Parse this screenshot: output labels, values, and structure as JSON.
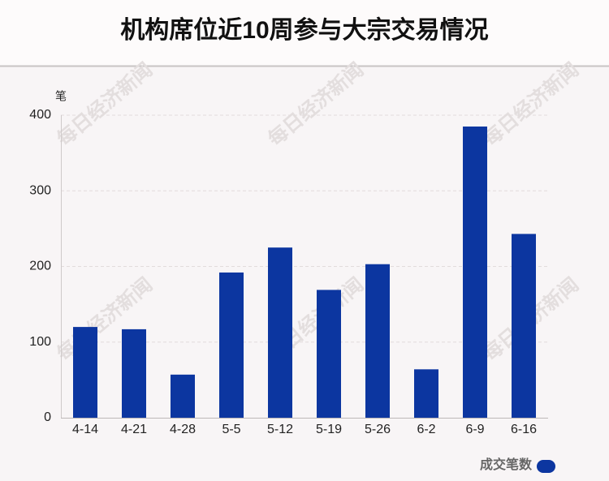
{
  "chart_data": {
    "type": "bar",
    "title": "机构席位近10周参与大宗交易情况",
    "y_unit": "笔",
    "watermark": "每日经济新闻",
    "categories": [
      "4-14",
      "4-21",
      "4-28",
      "5-5",
      "5-12",
      "5-19",
      "5-26",
      "6-2",
      "6-9",
      "6-16"
    ],
    "series": [
      {
        "name": "成交笔数",
        "color": "#0c36a0",
        "values": [
          120,
          117,
          57,
          192,
          225,
          169,
          203,
          64,
          385,
          243
        ]
      }
    ],
    "ylim": [
      0,
      400
    ],
    "yticks": [
      0,
      100,
      200,
      300,
      400
    ],
    "grid": true,
    "legend": "bottom-right"
  }
}
